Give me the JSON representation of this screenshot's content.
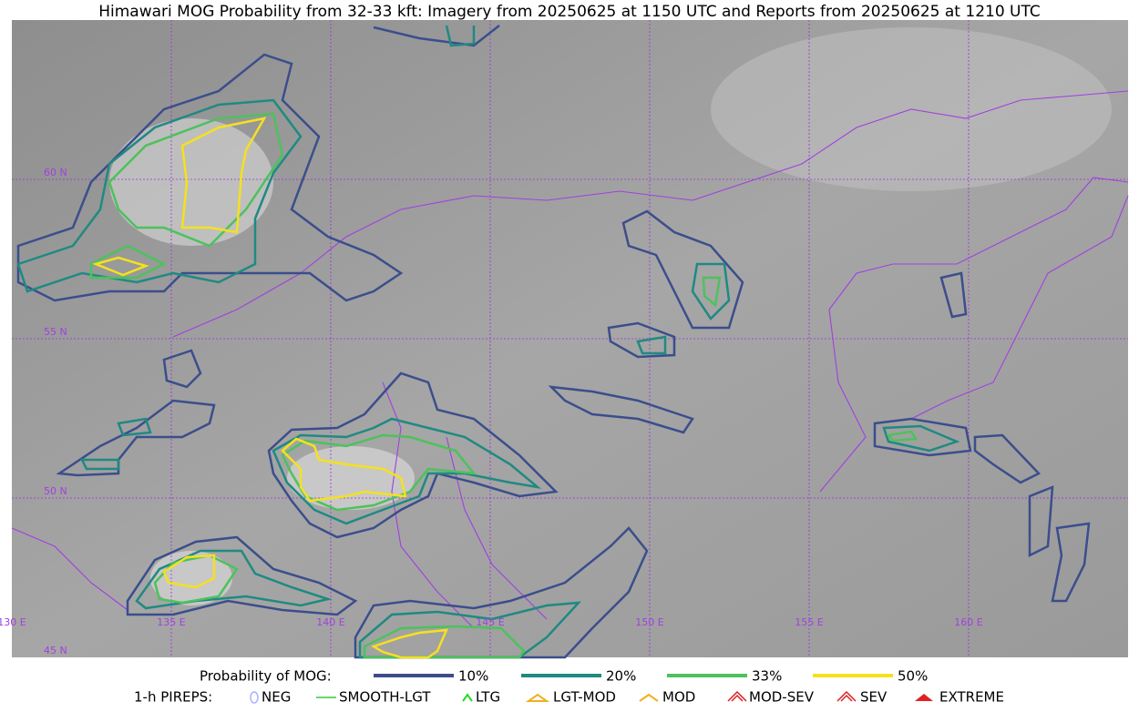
{
  "title": "Himawari MOG Probability from 32-33 kft: Imagery from 20250625 at 1150 UTC and Reports from 20250625 at 1210 UTC",
  "grid_labels": {
    "lat": [
      "60 N",
      "55 N",
      "50 N",
      "45 N"
    ],
    "lon": [
      "130 E",
      "135 E",
      "140 E",
      "145 E",
      "150 E",
      "155 E",
      "160 E"
    ]
  },
  "legend": {
    "label": "Probability of MOG:",
    "levels": [
      {
        "label": "10%",
        "color": "#3b4e8c"
      },
      {
        "label": "20%",
        "color": "#1f8a82"
      },
      {
        "label": "33%",
        "color": "#4cc25c"
      },
      {
        "label": "50%",
        "color": "#f5e11e"
      }
    ]
  },
  "pireps": {
    "label": "1-h PIREPS:",
    "items": [
      "NEG",
      "SMOOTH-LGT",
      "LTG",
      "LGT-MOD",
      "MOD",
      "MOD-SEV",
      "SEV",
      "EXTREME"
    ]
  }
}
